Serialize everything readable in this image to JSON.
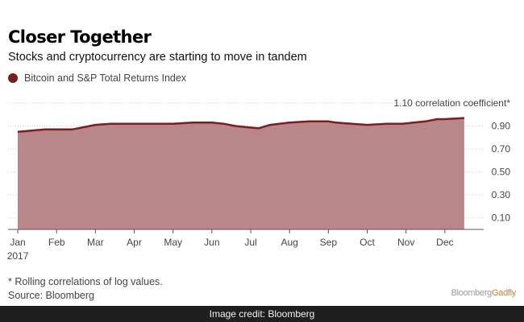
{
  "header": {
    "title": "Closer Together",
    "subtitle": "Stocks and cryptocurrency are starting to move in tandem"
  },
  "legend": {
    "label": "Bitcoin and S&P Total Returns Index"
  },
  "chart_data": {
    "type": "area",
    "title": "Closer Together",
    "subtitle": "Stocks and cryptocurrency are starting to move in tandem",
    "series": [
      {
        "name": "Bitcoin and S&P Total Returns Index",
        "color": "#7a1e22",
        "fill": "#b98789",
        "x": [
          0.0,
          0.35,
          0.7,
          1.0,
          1.4,
          1.7,
          2.0,
          2.4,
          2.8,
          3.0,
          3.5,
          4.0,
          4.5,
          4.8,
          5.0,
          5.3,
          5.6,
          5.9,
          6.2,
          6.5,
          7.0,
          7.5,
          7.8,
          8.0,
          8.2,
          8.6,
          9.0,
          9.5,
          9.9,
          10.2,
          10.5,
          10.8,
          11.0,
          11.5
        ],
        "y": [
          0.85,
          0.86,
          0.87,
          0.87,
          0.87,
          0.89,
          0.91,
          0.92,
          0.92,
          0.92,
          0.92,
          0.92,
          0.93,
          0.93,
          0.93,
          0.92,
          0.9,
          0.89,
          0.88,
          0.91,
          0.93,
          0.94,
          0.94,
          0.94,
          0.93,
          0.92,
          0.91,
          0.92,
          0.92,
          0.93,
          0.94,
          0.96,
          0.96,
          0.97
        ]
      }
    ],
    "x_ticks": [
      {
        "pos": 0,
        "label": "Jan",
        "sub": "2017"
      },
      {
        "pos": 1,
        "label": "Feb"
      },
      {
        "pos": 2,
        "label": "Mar"
      },
      {
        "pos": 3,
        "label": "Apr"
      },
      {
        "pos": 4,
        "label": "May"
      },
      {
        "pos": 5,
        "label": "Jun"
      },
      {
        "pos": 6,
        "label": "Jul"
      },
      {
        "pos": 7,
        "label": "Aug"
      },
      {
        "pos": 8,
        "label": "Sep"
      },
      {
        "pos": 9,
        "label": "Oct"
      },
      {
        "pos": 10,
        "label": "Nov"
      },
      {
        "pos": 11,
        "label": "Dec"
      }
    ],
    "y_ticks": [
      "1.10 correlation coefficient*",
      "0.90",
      "0.70",
      "0.50",
      "0.30",
      "0.10"
    ],
    "y_tick_values": [
      1.1,
      0.9,
      0.7,
      0.5,
      0.3,
      0.1
    ],
    "xlim": [
      -0.25,
      12.0
    ],
    "ylim": [
      0.0,
      1.1
    ],
    "grid": true,
    "y_axis_side": "right",
    "legend_position": "top-left"
  },
  "footer": {
    "note": "* Rolling correlations of log values.",
    "source": "Source: Bloomberg",
    "brand_part1": "Bloomberg",
    "brand_part2": "Gadfly"
  },
  "credit": "Image credit: Bloomberg"
}
